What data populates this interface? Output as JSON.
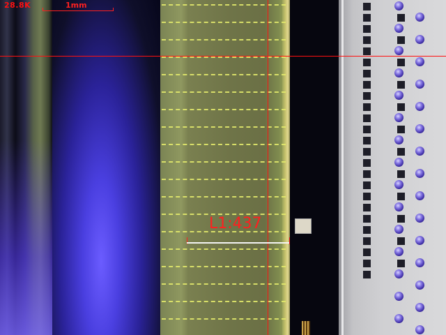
{
  "overlay": {
    "magnification": "28.8K",
    "scale_label": "1mm",
    "measurement_label": "L1:437"
  },
  "colors": {
    "overlay_red": "#ff1010",
    "trace_yellow": "#e3ea6c",
    "glow_blue": "#4a3fe0",
    "panel_gray": "#d6d6d8"
  },
  "icons": {
    "crosshair": "crosshair-icon"
  }
}
